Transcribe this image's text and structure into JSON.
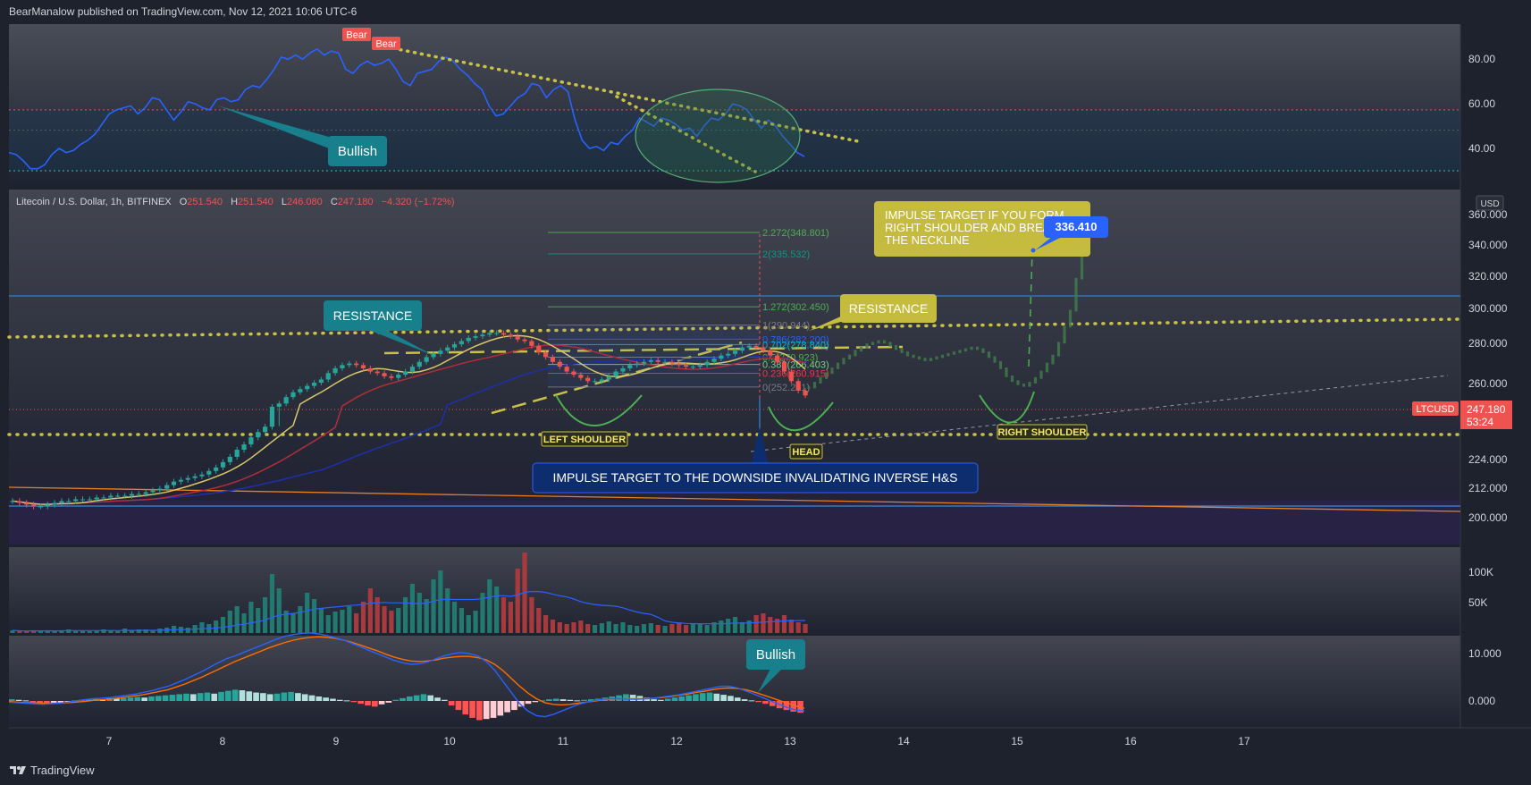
{
  "header": {
    "publisher_line": "BearManalow published on TradingView.com, Nov 12, 2021 10:06 UTC-6"
  },
  "legend": {
    "symbol": "Litecoin / U.S. Dollar, 1h, BITFINEX",
    "open_label": "O",
    "open": "251.540",
    "high_label": "H",
    "high": "251.540",
    "low_label": "L",
    "low": "246.080",
    "close_label": "C",
    "close": "247.180",
    "change": "−4.320 (−1.72%)"
  },
  "currency_button": "USD",
  "footer": {
    "brand": "TradingView"
  },
  "colors": {
    "background": "#1e222d",
    "up": "#26a69a",
    "down": "#ef5350",
    "rsi_line": "#2962ff",
    "macd_signal": "#ff6d00",
    "yellow_dots": "#c9c246",
    "annotation_yellow": "#c5bb3f",
    "annotation_teal": "#187f8c",
    "annotation_navy": "#0d2d6e"
  },
  "chart_data": [
    {
      "id": "rsi",
      "type": "line",
      "y_ticks": [
        "80.00",
        "60.00",
        "40.00"
      ],
      "ylim": [
        28,
        93
      ],
      "series": [
        {
          "values": [
            39,
            38,
            35,
            31,
            31,
            33,
            38,
            41,
            39,
            40,
            43,
            45,
            48,
            53,
            58,
            60,
            61,
            62,
            58,
            61,
            66,
            65,
            60,
            55,
            59,
            64,
            63,
            61,
            60,
            65,
            66,
            64,
            65,
            70,
            72,
            71,
            75,
            80,
            86,
            85,
            87,
            85,
            88,
            90,
            87,
            89,
            88,
            80,
            78,
            82,
            84,
            82,
            83,
            85,
            80,
            74,
            72,
            78,
            79,
            80,
            84,
            86,
            84,
            80,
            77,
            73,
            70,
            62,
            57,
            58,
            62,
            66,
            68,
            73,
            72,
            66,
            70,
            72,
            69,
            55,
            45,
            41,
            42,
            40,
            44,
            43,
            47,
            50,
            56,
            54,
            52,
            56,
            55,
            53,
            50,
            51,
            47,
            52,
            56,
            55,
            58,
            63,
            62,
            60,
            55,
            51,
            55,
            52,
            47,
            43,
            39,
            37
          ]
        }
      ],
      "ref_lines": [
        "60.00",
        "40.00 lower band",
        "30.00"
      ],
      "annotations": [
        "Bear",
        "Bear",
        "Bullish"
      ]
    },
    {
      "id": "price",
      "type": "candlestick",
      "x_ticks": [
        "7",
        "8",
        "9",
        "10",
        "11",
        "12",
        "13",
        "14",
        "15",
        "16",
        "17"
      ],
      "y_ticks": [
        "360.000",
        "340.000",
        "320.000",
        "300.000",
        "280.000",
        "260.000",
        "224.000",
        "212.000",
        "200.000"
      ],
      "last_price_label": "247.180",
      "countdown_label": "53:24",
      "ticker_label": "LTCUSD",
      "fib_levels": [
        {
          "label": "2.272(348.801)",
          "value": 348.801
        },
        {
          "label": "2(335.532)",
          "value": 335.532
        },
        {
          "label": "1.272(302.450)",
          "value": 302.45
        },
        {
          "label": "1(290.944)",
          "value": 290.944
        },
        {
          "label": "0.786(282.200)",
          "value": 282.2
        },
        {
          "label": "0.702(278.840)",
          "value": 278.84
        },
        {
          "label": "0.5(270.923)",
          "value": 270.923
        },
        {
          "label": "0.382(266.403)",
          "value": 266.403
        },
        {
          "label": "0.236(260.915)",
          "value": 260.915
        },
        {
          "label": "0(252.281)",
          "value": 252.281
        }
      ],
      "closes": [
        196,
        195,
        194,
        193,
        193,
        194,
        195,
        196,
        196,
        197,
        197,
        197,
        198,
        198,
        199,
        199,
        199,
        200,
        200,
        201,
        202,
        203,
        205,
        207,
        208,
        209,
        210,
        211,
        213,
        215,
        218,
        221,
        225,
        228,
        232,
        235,
        238,
        240,
        242,
        246,
        249,
        251,
        253,
        255,
        257,
        261,
        264,
        266,
        267,
        266,
        264,
        262,
        261,
        259,
        258,
        260,
        262,
        265,
        268,
        271,
        273,
        275,
        277,
        279,
        281,
        283,
        284,
        285,
        286,
        286,
        285,
        284,
        282,
        281,
        278,
        274,
        271,
        268,
        265,
        262,
        260,
        258,
        256,
        256,
        257,
        259,
        262,
        264,
        266,
        267,
        268,
        269,
        268,
        268,
        267,
        266,
        265,
        265,
        266,
        268,
        270,
        272,
        273,
        275,
        277,
        278,
        277,
        275,
        272,
        268,
        262,
        256,
        250,
        247
      ],
      "projection_closes": [
        252,
        255,
        258,
        261,
        264,
        267,
        270,
        272,
        275,
        277,
        279,
        280,
        281,
        280,
        278,
        276,
        274,
        272,
        271,
        270,
        269,
        270,
        271,
        272,
        273,
        274,
        275,
        276,
        277,
        276,
        274,
        271,
        268,
        264,
        259,
        256,
        254,
        253,
        255,
        258,
        262,
        267,
        272,
        280,
        290,
        300,
        320,
        336
      ],
      "annotations": [
        "RESISTANCE",
        "RESISTANCE",
        "IMPULSE TARGET IF YOU FORM RIGHT SHOULDER AND BREAK THE NECKLINE",
        "336.410",
        "LEFT SHOULDER",
        "HEAD",
        "RIGHT SHOULDER",
        "IMPULSE TARGET TO THE DOWNSIDE INVALIDATING INVERSE H&S"
      ],
      "impulse_callout_lines": [
        "IMPULSE TARGET IF YOU FORM",
        "RIGHT SHOULDER AND BREAK",
        "THE NECKLINE"
      ]
    },
    {
      "id": "volume",
      "type": "bar",
      "y_ticks": [
        "100K",
        "50K"
      ],
      "ylim": [
        0,
        150
      ],
      "values": [
        3,
        2,
        2,
        3,
        2,
        3,
        2,
        3,
        4,
        3,
        3,
        2,
        3,
        4,
        3,
        2,
        5,
        3,
        4,
        4,
        3,
        5,
        6,
        8,
        7,
        6,
        9,
        12,
        10,
        14,
        18,
        25,
        30,
        22,
        35,
        28,
        40,
        66,
        50,
        25,
        22,
        30,
        45,
        38,
        28,
        20,
        24,
        26,
        30,
        22,
        35,
        50,
        40,
        30,
        25,
        28,
        40,
        55,
        45,
        38,
        60,
        70,
        50,
        35,
        28,
        20,
        25,
        45,
        60,
        52,
        40,
        35,
        72,
        90,
        40,
        28,
        20,
        15,
        12,
        10,
        12,
        14,
        10,
        9,
        11,
        13,
        10,
        12,
        9,
        8,
        10,
        11,
        9,
        8,
        10,
        12,
        9,
        11,
        10,
        9,
        12,
        14,
        16,
        18,
        12,
        14,
        20,
        22,
        18,
        16,
        20,
        15,
        12,
        10
      ]
    },
    {
      "id": "macd",
      "type": "bar",
      "y_ticks": [
        "10.000",
        "0.000"
      ],
      "ylim": [
        -5,
        14
      ],
      "histogram": [
        0.3,
        0.2,
        0.1,
        -0.2,
        -0.3,
        -0.5,
        -0.4,
        -0.3,
        -0.2,
        0.1,
        0.2,
        0.3,
        0.4,
        0.3,
        0.5,
        0.4,
        0.5,
        0.6,
        0.7,
        0.6,
        0.8,
        0.9,
        1.0,
        1.1,
        1.2,
        1.3,
        1.2,
        1.4,
        1.5,
        1.3,
        1.6,
        1.8,
        2.0,
        1.9,
        1.7,
        1.5,
        1.4,
        1.2,
        1.3,
        1.5,
        1.6,
        1.4,
        1.2,
        1.0,
        0.8,
        0.6,
        0.4,
        0.2,
        0.1,
        -0.2,
        -0.5,
        -0.8,
        -1.0,
        -0.6,
        -0.3,
        0.2,
        0.5,
        0.8,
        1.0,
        1.2,
        1.0,
        0.6,
        0.2,
        -0.8,
        -1.6,
        -2.4,
        -3.0,
        -3.4,
        -3.2,
        -3.0,
        -2.6,
        -2.0,
        -1.6,
        -1.0,
        -0.5,
        -0.2,
        0.1,
        0.3,
        0.4,
        0.3,
        0.2,
        0.1,
        0.2,
        0.3,
        0.4,
        0.6,
        0.8,
        1.0,
        1.2,
        1.1,
        0.9,
        0.6,
        0.3,
        0.2,
        0.4,
        0.6,
        0.8,
        1.0,
        1.2,
        1.4,
        1.5,
        1.3,
        1.1,
        0.9,
        0.6,
        0.3,
        0.1,
        -0.2,
        -0.5,
        -0.9,
        -1.3,
        -1.6,
        -1.9,
        -2.1
      ],
      "macd_line": [
        -0.2,
        -0.3,
        -0.4,
        -0.5,
        -0.6,
        -0.5,
        -0.4,
        -0.2,
        0.0,
        0.2,
        0.4,
        0.5,
        0.6,
        0.8,
        1.0,
        1.2,
        1.5,
        1.8,
        2.2,
        2.6,
        3.2,
        3.8,
        4.5,
        5.2,
        6.0,
        6.8,
        7.5,
        8.0,
        8.6,
        9.2,
        9.8,
        10.4,
        11.0,
        11.5,
        11.8,
        12.0,
        12.1,
        11.9,
        11.6,
        11.2,
        10.8,
        10.2,
        9.6,
        9.0,
        8.4,
        7.8,
        7.2,
        6.8,
        6.5,
        6.6,
        6.9,
        7.5,
        8.0,
        8.4,
        8.6,
        8.4,
        8.0,
        7.0,
        5.5,
        3.5,
        1.5,
        -0.5,
        -1.8,
        -2.6,
        -2.8,
        -2.4,
        -1.8,
        -1.2,
        -0.6,
        -0.2,
        0.1,
        0.3,
        0.4,
        0.4,
        0.3,
        0.3,
        0.4,
        0.5,
        0.7,
        0.9,
        1.1,
        1.4,
        1.7,
        2.0,
        2.3,
        2.6,
        2.6,
        2.3,
        1.8,
        1.2,
        0.6,
        0.0,
        -0.6,
        -1.2,
        -1.6,
        -1.8
      ],
      "signal_line": [
        -0.1,
        -0.2,
        -0.3,
        -0.3,
        -0.4,
        -0.4,
        -0.4,
        -0.3,
        -0.2,
        -0.1,
        0.1,
        0.2,
        0.3,
        0.5,
        0.7,
        0.9,
        1.1,
        1.4,
        1.7,
        2.0,
        2.5,
        3.0,
        3.6,
        4.2,
        4.9,
        5.6,
        6.3,
        7.0,
        7.6,
        8.2,
        8.8,
        9.4,
        9.9,
        10.4,
        10.8,
        11.1,
        11.3,
        11.4,
        11.3,
        11.1,
        10.8,
        10.4,
        9.9,
        9.4,
        8.9,
        8.3,
        7.8,
        7.4,
        7.1,
        7.0,
        7.1,
        7.3,
        7.6,
        7.8,
        7.9,
        7.9,
        7.7,
        7.3,
        6.5,
        5.4,
        4.0,
        2.6,
        1.4,
        0.4,
        -0.3,
        -0.6,
        -0.7,
        -0.6,
        -0.4,
        -0.2,
        0.0,
        0.2,
        0.3,
        0.4,
        0.4,
        0.4,
        0.4,
        0.5,
        0.6,
        0.8,
        1.0,
        1.2,
        1.5,
        1.7,
        2.0,
        2.2,
        2.3,
        2.2,
        2.0,
        1.6,
        1.1,
        0.6,
        0.1,
        -0.4,
        -0.9,
        -1.3
      ],
      "annotations": [
        "Bullish"
      ]
    }
  ]
}
